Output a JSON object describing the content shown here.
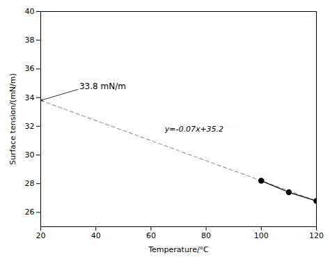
{
  "chart_data": {
    "type": "line",
    "xlabel": "Temperature/°C",
    "ylabel": "Surface tension/(mN/m)",
    "xlim": [
      20,
      120
    ],
    "ylim": [
      25,
      40
    ],
    "xticks": [
      20,
      40,
      60,
      80,
      100,
      120
    ],
    "yticks": [
      26,
      28,
      30,
      32,
      34,
      36,
      38,
      40
    ],
    "grid": false,
    "series": [
      {
        "x": [
          20,
          120
        ],
        "values": [
          33.8,
          26.8
        ],
        "color": "#999999",
        "line_style": "dashed",
        "marker": "none"
      },
      {
        "x": [
          100,
          110,
          120
        ],
        "values": [
          28.2,
          27.4,
          26.8
        ],
        "color": "#000000",
        "line_style": "solid",
        "marker": "circle"
      }
    ],
    "annotations": [
      {
        "text": "33.8 mN/m",
        "x": 34,
        "y": 34.6,
        "point_x": 20,
        "point_y": 33.8,
        "arrow": true
      },
      {
        "text": "y=-0.07x+35.2",
        "x": 65,
        "y": 31.8,
        "italic": true
      }
    ]
  }
}
